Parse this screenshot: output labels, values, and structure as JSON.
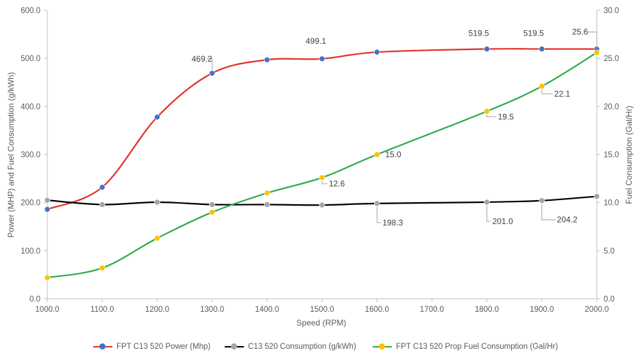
{
  "chart_data": {
    "type": "line",
    "title": "",
    "xlabel": "Speed (RPM)",
    "ylabel_left": "Power (MHP) and Fuel Consumption (g/kWh)",
    "ylabel_right": "Fuel Consumption (Gal/Hr)",
    "x": [
      1000,
      1100,
      1200,
      1300,
      1400,
      1500,
      1600,
      1800,
      1900,
      2000
    ],
    "x_ticks": [
      "1000.0",
      "1100.0",
      "1200.0",
      "1300.0",
      "1400.0",
      "1500.0",
      "1600.0",
      "1700.0",
      "1800.0",
      "1900.0",
      "2000.0"
    ],
    "y_left_ticks": [
      "0.0",
      "100.0",
      "200.0",
      "300.0",
      "400.0",
      "500.0",
      "600.0"
    ],
    "y_right_ticks": [
      "0.0",
      "5.0",
      "10.0",
      "15.0",
      "20.0",
      "25.0",
      "30.0"
    ],
    "xlim": [
      1000,
      2000
    ],
    "ylim_left": [
      0,
      600
    ],
    "ylim_right": [
      0,
      30
    ],
    "grid": false,
    "legend_position": "bottom",
    "series": [
      {
        "name": "FPT C13 520 Power (Mhp)",
        "axis": "left",
        "color": "#e0302a",
        "marker_color": "#4472c4",
        "values": [
          186,
          232,
          378,
          469.2,
          497,
          499.1,
          513,
          519.5,
          519.5,
          519.5
        ],
        "labels": [
          {
            "index": 3,
            "text": "469.2"
          },
          {
            "index": 5,
            "text": "499.1"
          },
          {
            "index": 7,
            "text": "519.5"
          },
          {
            "index": 8,
            "text": "519.5"
          }
        ]
      },
      {
        "name": "C13 520 Consumption (g/kWh)",
        "axis": "left",
        "color": "#000000",
        "marker_color": "#a5a5a5",
        "values": [
          205,
          196,
          201,
          196,
          196,
          195,
          198.3,
          201.0,
          204.2,
          213
        ],
        "labels": [
          {
            "index": 6,
            "text": "198.3"
          },
          {
            "index": 7,
            "text": "201.0"
          },
          {
            "index": 8,
            "text": "204.2"
          }
        ]
      },
      {
        "name": "FPT C13 520 Prop Fuel Consumption (Gal/Hr)",
        "axis": "right",
        "color": "#2eaa48",
        "marker_color": "#ffc000",
        "values": [
          2.2,
          3.2,
          6.3,
          9.0,
          11.0,
          12.6,
          15.0,
          19.5,
          22.1,
          25.6
        ],
        "labels": [
          {
            "index": 5,
            "text": "12.6"
          },
          {
            "index": 6,
            "text": "15.0"
          },
          {
            "index": 7,
            "text": "19.5"
          },
          {
            "index": 8,
            "text": "22.1"
          },
          {
            "index": 9,
            "text": "25.6"
          }
        ]
      }
    ]
  }
}
